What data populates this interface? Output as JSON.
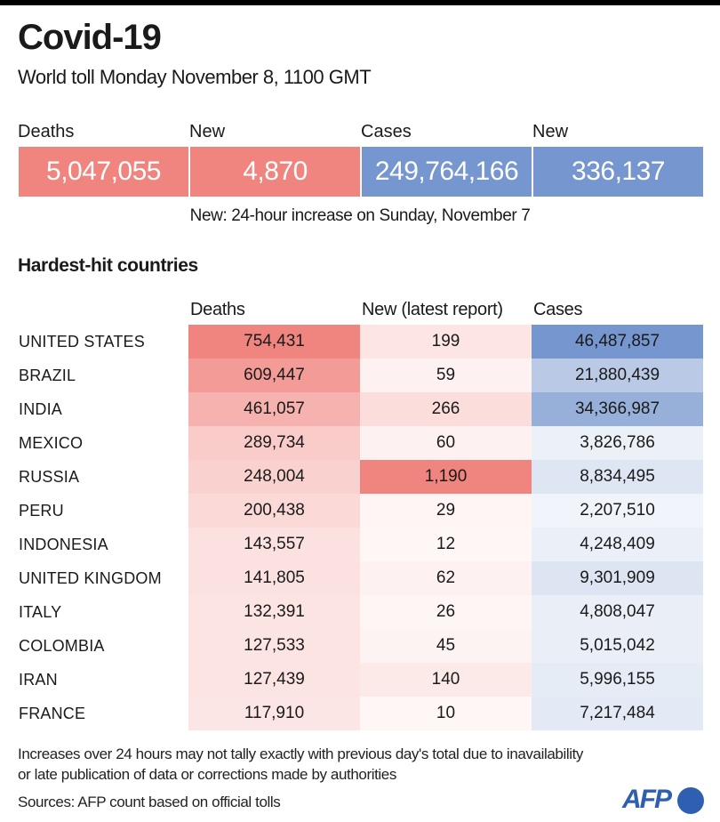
{
  "title": "Covid-19",
  "subtitle": "World toll Monday November 8, 1100 GMT",
  "world": {
    "deaths_label": "Deaths",
    "deaths_value": "5,047,055",
    "new_deaths_label": "New",
    "new_deaths_value": "4,870",
    "cases_label": "Cases",
    "cases_value": "249,764,166",
    "new_cases_label": "New",
    "new_cases_value": "336,137",
    "note": "New: 24-hour increase on Sunday, November 7"
  },
  "colors": {
    "deaths": "#F0857F",
    "cases": "#7596CE"
  },
  "chart_data": {
    "type": "table",
    "title": "Hardest-hit countries",
    "columns": [
      "Deaths",
      "New (latest report)",
      "Cases"
    ],
    "rows": [
      {
        "country": "UNITED STATES",
        "deaths": 754431,
        "new": 199,
        "cases": 46487857
      },
      {
        "country": "BRAZIL",
        "deaths": 609447,
        "new": 59,
        "cases": 21880439
      },
      {
        "country": "INDIA",
        "deaths": 461057,
        "new": 266,
        "cases": 34366987
      },
      {
        "country": "MEXICO",
        "deaths": 289734,
        "new": 60,
        "cases": 3826786
      },
      {
        "country": "RUSSIA",
        "deaths": 248004,
        "new": 1190,
        "cases": 8834495
      },
      {
        "country": "PERU",
        "deaths": 200438,
        "new": 29,
        "cases": 2207510
      },
      {
        "country": "INDONESIA",
        "deaths": 143557,
        "new": 12,
        "cases": 4248409
      },
      {
        "country": "UNITED KINGDOM",
        "deaths": 141805,
        "new": 62,
        "cases": 9301909
      },
      {
        "country": "ITALY",
        "deaths": 132391,
        "new": 26,
        "cases": 4808047
      },
      {
        "country": "COLOMBIA",
        "deaths": 127533,
        "new": 45,
        "cases": 5015042
      },
      {
        "country": "IRAN",
        "deaths": 127439,
        "new": 140,
        "cases": 5996155
      },
      {
        "country": "FRANCE",
        "deaths": 117910,
        "new": 10,
        "cases": 7217484
      }
    ]
  },
  "footer": {
    "note_line1": "Increases over 24 hours may not tally exactly with previous day's total due to inavailability",
    "note_line2": "or late publication of data or corrections made by authorities",
    "sources": "Sources: AFP count based on official tolls",
    "logo": "AFP"
  }
}
